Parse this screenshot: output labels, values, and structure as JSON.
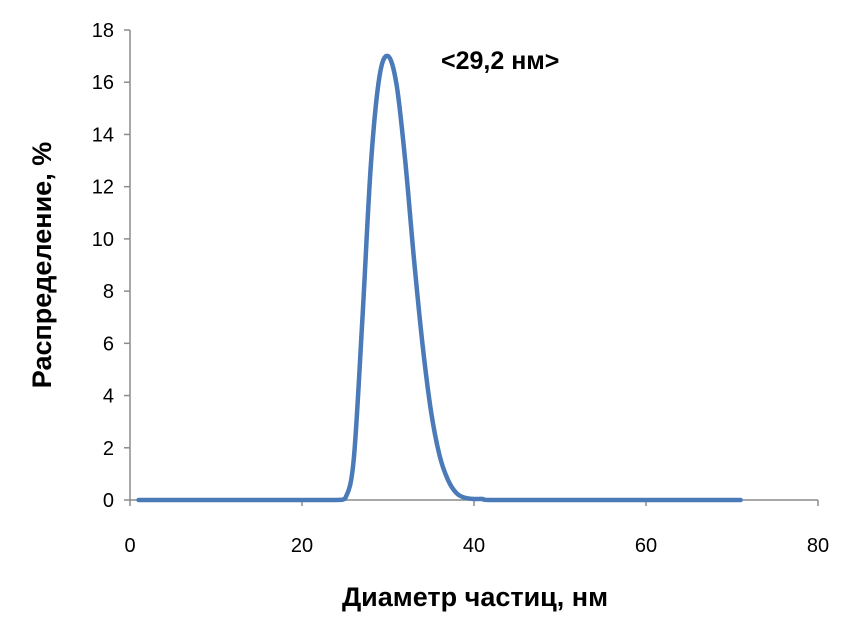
{
  "chart_data": {
    "type": "line",
    "title": "",
    "xlabel": "Диаметр частиц, нм",
    "ylabel": "Распределение, %",
    "xlim": [
      0,
      80
    ],
    "ylim": [
      0,
      18
    ],
    "xticks": [
      "0",
      "20",
      "40",
      "60",
      "80"
    ],
    "yticks": [
      "0",
      "2",
      "4",
      "6",
      "8",
      "10",
      "12",
      "14",
      "16",
      "18"
    ],
    "grid": false,
    "legend": "none",
    "annotation": "<29,2 нм>",
    "series_color": "#4a7ab8",
    "series": [
      {
        "x": [
          1,
          10,
          20,
          24,
          25,
          26,
          27,
          28,
          29,
          30,
          31,
          32,
          33,
          34,
          35,
          36,
          37,
          38,
          39,
          40,
          41,
          42,
          50,
          60,
          71
        ],
        "y": [
          0,
          0,
          0,
          0,
          0.05,
          1.5,
          6.8,
          12.8,
          16.2,
          17.0,
          15.9,
          13.0,
          9.3,
          6.0,
          3.4,
          1.7,
          0.75,
          0.25,
          0.08,
          0.04,
          0.04,
          0,
          0,
          0,
          0
        ]
      }
    ]
  }
}
